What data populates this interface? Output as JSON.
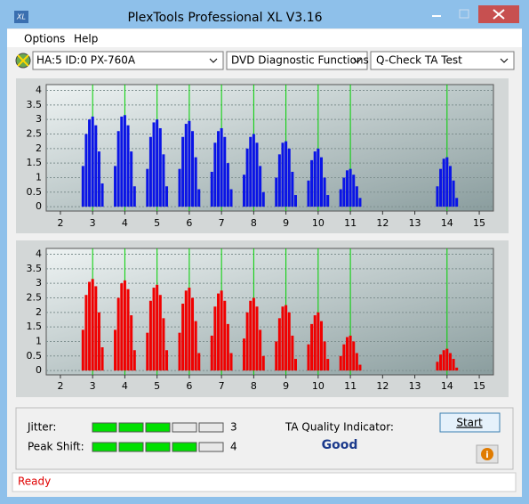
{
  "window": {
    "title": "PlexTools Professional XL V3.16",
    "icon": "XL"
  },
  "menu": [
    "Options",
    "Help"
  ],
  "dropdowns": [
    "HA:5 ID:0  PX-760A",
    "DVD Diagnostic Functions",
    "Q-Check TA Test"
  ],
  "charts": [
    {
      "type": "bar",
      "color": "#0a14e6",
      "xlim": [
        1.56,
        15.44
      ],
      "ylim": [
        -0.15,
        4.2
      ],
      "xticks": [
        2,
        3,
        4,
        5,
        6,
        7,
        8,
        9,
        10,
        11,
        12,
        13,
        14,
        15
      ],
      "yticks": [
        0,
        0.5,
        1,
        1.5,
        2,
        2.5,
        3,
        3.5,
        4
      ],
      "grid": true,
      "markers": [
        3,
        4,
        5,
        6,
        7,
        8,
        9,
        10,
        11,
        14
      ],
      "x": [
        2.7,
        2.8,
        2.9,
        3,
        3.1,
        3.2,
        3.3,
        3.7,
        3.8,
        3.9,
        4,
        4.1,
        4.2,
        4.3,
        4.7,
        4.8,
        4.9,
        5,
        5.1,
        5.2,
        5.3,
        5.7,
        5.8,
        5.9,
        6,
        6.1,
        6.2,
        6.3,
        6.7,
        6.8,
        6.9,
        7,
        7.1,
        7.2,
        7.3,
        7.7,
        7.8,
        7.9,
        8,
        8.1,
        8.2,
        8.3,
        8.7,
        8.8,
        8.9,
        9,
        9.1,
        9.2,
        9.3,
        9.7,
        9.8,
        9.9,
        10,
        10.1,
        10.2,
        10.3,
        10.7,
        10.8,
        10.9,
        11,
        11.1,
        11.2,
        11.3,
        13.7,
        13.8,
        13.9,
        14,
        14.1,
        14.2,
        14.3
      ],
      "values": [
        1.4,
        2.5,
        3.0,
        3.1,
        2.8,
        1.9,
        0.8,
        1.4,
        2.6,
        3.1,
        3.15,
        2.8,
        1.9,
        0.7,
        1.3,
        2.4,
        2.9,
        3.0,
        2.7,
        1.8,
        0.7,
        1.3,
        2.4,
        2.85,
        2.95,
        2.6,
        1.7,
        0.6,
        1.2,
        2.2,
        2.6,
        2.7,
        2.4,
        1.5,
        0.6,
        1.1,
        2.0,
        2.4,
        2.5,
        2.2,
        1.4,
        0.5,
        1.0,
        1.8,
        2.2,
        2.25,
        2.0,
        1.2,
        0.4,
        0.9,
        1.6,
        1.9,
        2.0,
        1.7,
        1.0,
        0.4,
        0.6,
        1.0,
        1.25,
        1.3,
        1.1,
        0.7,
        0.3,
        0.7,
        1.3,
        1.65,
        1.7,
        1.4,
        0.9,
        0.3
      ]
    },
    {
      "type": "bar",
      "color": "#f00000",
      "xlim": [
        1.56,
        15.44
      ],
      "ylim": [
        -0.15,
        4.2
      ],
      "xticks": [
        2,
        3,
        4,
        5,
        6,
        7,
        8,
        9,
        10,
        11,
        12,
        13,
        14,
        15
      ],
      "yticks": [
        0,
        0.5,
        1,
        1.5,
        2,
        2.5,
        3,
        3.5,
        4
      ],
      "grid": true,
      "markers": [
        3,
        4,
        5,
        6,
        7,
        8,
        9,
        10,
        11,
        14
      ],
      "x": [
        2.7,
        2.8,
        2.9,
        3,
        3.1,
        3.2,
        3.3,
        3.7,
        3.8,
        3.9,
        4,
        4.1,
        4.2,
        4.3,
        4.7,
        4.8,
        4.9,
        5,
        5.1,
        5.2,
        5.3,
        5.7,
        5.8,
        5.9,
        6,
        6.1,
        6.2,
        6.3,
        6.7,
        6.8,
        6.9,
        7,
        7.1,
        7.2,
        7.3,
        7.7,
        7.8,
        7.9,
        8,
        8.1,
        8.2,
        8.3,
        8.7,
        8.8,
        8.9,
        9,
        9.1,
        9.2,
        9.3,
        9.7,
        9.8,
        9.9,
        10,
        10.1,
        10.2,
        10.3,
        10.7,
        10.8,
        10.9,
        11,
        11.1,
        11.2,
        11.3,
        13.7,
        13.8,
        13.9,
        14,
        14.1,
        14.2,
        14.3
      ],
      "values": [
        1.4,
        2.6,
        3.05,
        3.15,
        2.9,
        2.0,
        0.8,
        1.4,
        2.5,
        3.0,
        3.1,
        2.8,
        1.9,
        0.7,
        1.3,
        2.4,
        2.85,
        2.95,
        2.6,
        1.8,
        0.7,
        1.3,
        2.3,
        2.75,
        2.85,
        2.5,
        1.7,
        0.6,
        1.2,
        2.2,
        2.65,
        2.75,
        2.4,
        1.6,
        0.6,
        1.1,
        2.0,
        2.4,
        2.5,
        2.2,
        1.4,
        0.5,
        1.0,
        1.8,
        2.2,
        2.25,
        2.0,
        1.2,
        0.4,
        0.9,
        1.6,
        1.9,
        2.0,
        1.7,
        1.0,
        0.4,
        0.5,
        0.9,
        1.15,
        1.2,
        1.0,
        0.6,
        0.2,
        0.3,
        0.55,
        0.7,
        0.75,
        0.6,
        0.4,
        0.1
      ]
    }
  ],
  "meters": [
    {
      "label": "Jitter:",
      "value": 3,
      "max": 5
    },
    {
      "label": "Peak Shift:",
      "value": 4,
      "max": 5
    }
  ],
  "quality": {
    "label": "TA Quality Indicator:",
    "value": "Good"
  },
  "buttons": {
    "start": "Start",
    "info": "i"
  },
  "status": "Ready"
}
